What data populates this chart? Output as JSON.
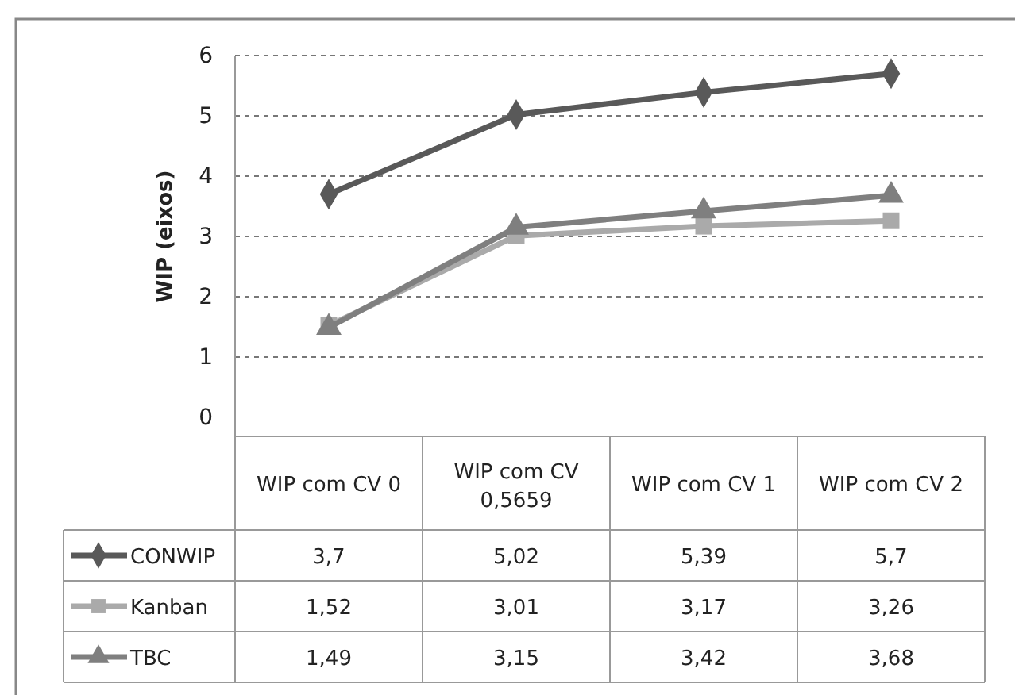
{
  "chart_data": {
    "type": "line",
    "ylabel": "WIP (eixos)",
    "categories": [
      "WIP com CV 0",
      "WIP com CV 0,5659",
      "WIP com CV 1",
      "WIP com CV 2"
    ],
    "series": [
      {
        "name": "CONWIP",
        "color": "#595959",
        "marker": "diamond",
        "values": [
          3.7,
          5.02,
          5.39,
          5.7
        ],
        "value_labels": [
          "3,7",
          "5,02",
          "5,39",
          "5,7"
        ]
      },
      {
        "name": "Kanban",
        "color": "#aaaaaa",
        "marker": "square",
        "values": [
          1.52,
          3.01,
          3.17,
          3.26
        ],
        "value_labels": [
          "1,52",
          "3,01",
          "3,17",
          "3,26"
        ]
      },
      {
        "name": "TBC",
        "color": "#7f7f7f",
        "marker": "triangle",
        "values": [
          1.49,
          3.15,
          3.42,
          3.68
        ],
        "value_labels": [
          "1,49",
          "3,15",
          "3,42",
          "3,68"
        ]
      }
    ],
    "ylim": [
      0,
      6
    ],
    "yticks": [
      0,
      1,
      2,
      3,
      4,
      5,
      6
    ],
    "grid": "y",
    "legend": "bottom left",
    "line_style": "solid"
  }
}
